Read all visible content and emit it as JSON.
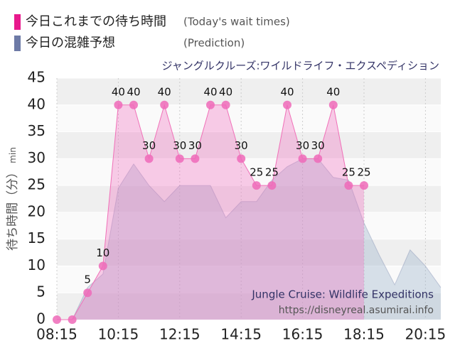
{
  "chart_data": {
    "type": "area",
    "subtitle": "ジャングルクルーズ:ワイルドライフ・エクスペディション",
    "ylabel": "待ち時間（分）",
    "ylabel_unit": "min",
    "watermark": [
      "Jungle Cruise: Wildlife Expeditions",
      "https://disneyreal.asumirai.info"
    ],
    "xlim": [
      "08:15",
      "20:45"
    ],
    "xticks": [
      "08:15",
      "10:15",
      "12:15",
      "14:15",
      "16:15",
      "18:15",
      "20:15"
    ],
    "ylim": [
      0,
      45
    ],
    "yticks": [
      0,
      5,
      10,
      15,
      20,
      25,
      30,
      35,
      40,
      45
    ],
    "grid": true,
    "series": [
      {
        "name": "今日これまでの待ち時間",
        "note": "(Today's wait times)",
        "color": "#e8198c",
        "x": [
          "08:15",
          "08:45",
          "09:15",
          "09:45",
          "10:15",
          "10:45",
          "11:15",
          "11:45",
          "12:15",
          "12:45",
          "13:15",
          "13:45",
          "14:15",
          "14:45",
          "15:15",
          "15:45",
          "16:15",
          "16:45",
          "17:15",
          "17:45",
          "18:15"
        ],
        "values": [
          0,
          0,
          5,
          10,
          40,
          40,
          30,
          40,
          30,
          30,
          40,
          40,
          30,
          25,
          25,
          40,
          30,
          30,
          40,
          25,
          25
        ]
      },
      {
        "name": "今日の混雑予想",
        "note": "(Prediction)",
        "color": "#6d7aa6",
        "x": [
          "08:15",
          "08:45",
          "09:15",
          "09:45",
          "10:15",
          "10:45",
          "11:15",
          "11:45",
          "12:15",
          "12:45",
          "13:15",
          "13:45",
          "14:15",
          "14:45",
          "15:15",
          "15:45",
          "16:15",
          "16:45",
          "17:15",
          "17:45",
          "18:15",
          "18:45",
          "19:15",
          "19:45",
          "20:15",
          "20:45"
        ],
        "values": [
          0,
          0,
          6,
          8.5,
          24.5,
          29,
          25,
          22,
          25,
          25,
          25,
          19,
          22,
          22,
          26,
          28.5,
          30,
          30,
          26.5,
          26,
          18,
          12,
          6.5,
          13,
          10,
          6
        ]
      }
    ]
  }
}
